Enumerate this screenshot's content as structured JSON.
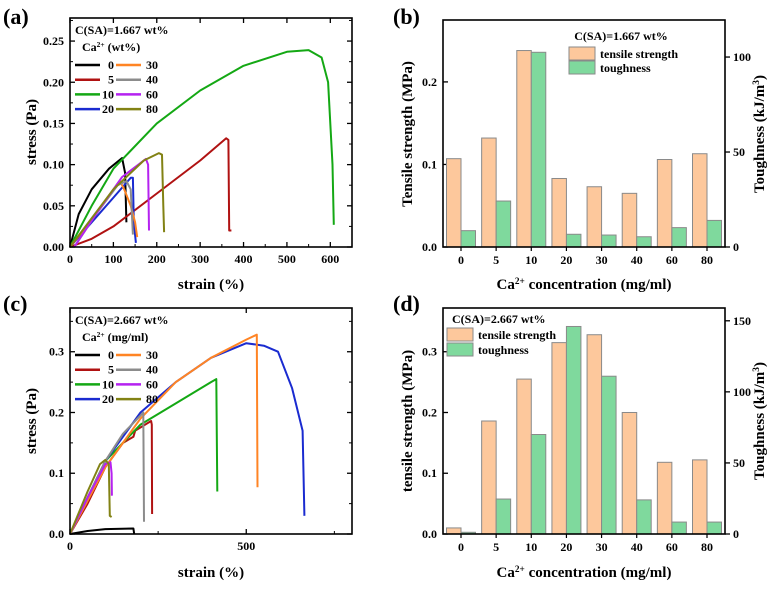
{
  "colors": {
    "black": "#000000",
    "red": "#b01212",
    "green": "#14a814",
    "blue": "#1a2bd0",
    "orange": "#ff8424",
    "gray": "#8c8c8c",
    "purple": "#b522f0",
    "olive": "#828214",
    "bar_tensile": "#fdc89c",
    "bar_toughness": "#7fd99d",
    "bar_edge": "#8a8a8a"
  },
  "chart_data": [
    {
      "panel_label": "(a)",
      "type": "line",
      "xlabel": [
        [
          "strain (%)",
          ""
        ]
      ],
      "ylabel": [
        [
          "stress (Pa)",
          ""
        ]
      ],
      "xlim": [
        0,
        650
      ],
      "ylim": [
        0,
        0.278
      ],
      "xticks": [
        0,
        100,
        200,
        300,
        400,
        500,
        600
      ],
      "xtick_labels": [
        "0",
        "100",
        "200",
        "300",
        "400",
        "500",
        "600"
      ],
      "yticks": [
        0,
        0.05,
        0.1,
        0.15,
        0.2,
        0.25
      ],
      "ytick_labels": [
        "0.00",
        "0.05",
        "0.10",
        "0.15",
        "0.20",
        "0.25"
      ],
      "legend": {
        "title": "C(SA)=1.667 wt%",
        "subtitle": [
          [
            "Ca",
            ""
          ],
          [
            "2+",
            "sup"
          ],
          [
            " (wt%)",
            ""
          ]
        ],
        "placement": "top-left"
      },
      "series": [
        {
          "name": "0",
          "color": "black",
          "x": [
            0,
            20,
            50,
            90,
            120,
            127,
            130
          ],
          "y": [
            0,
            0.04,
            0.07,
            0.095,
            0.108,
            0.09,
            0.03
          ]
        },
        {
          "name": "5",
          "color": "red",
          "x": [
            0,
            50,
            100,
            200,
            300,
            360,
            365,
            367,
            372
          ],
          "y": [
            0,
            0.01,
            0.025,
            0.065,
            0.105,
            0.132,
            0.13,
            0.02,
            0.02
          ]
        },
        {
          "name": "10",
          "color": "green",
          "x": [
            0,
            50,
            100,
            200,
            300,
            400,
            500,
            550,
            580,
            595,
            605,
            608
          ],
          "y": [
            0,
            0.05,
            0.095,
            0.15,
            0.19,
            0.22,
            0.237,
            0.239,
            0.23,
            0.2,
            0.1,
            0.027
          ]
        },
        {
          "name": "20",
          "color": "blue",
          "x": [
            0,
            50,
            100,
            140,
            145,
            147,
            152
          ],
          "y": [
            0,
            0.03,
            0.06,
            0.084,
            0.084,
            0.03,
            0.005
          ]
        },
        {
          "name": "30",
          "color": "orange",
          "x": [
            0,
            60,
            115,
            125,
            140,
            150,
            155
          ],
          "y": [
            0,
            0.04,
            0.08,
            0.07,
            0.05,
            0.03,
            0.012
          ]
        },
        {
          "name": "40",
          "color": "gray",
          "x": [
            10,
            60,
            110,
            130,
            140,
            145
          ],
          "y": [
            0,
            0.04,
            0.075,
            0.08,
            0.07,
            0.015
          ]
        },
        {
          "name": "60",
          "color": "purple",
          "x": [
            10,
            60,
            120,
            175,
            180,
            182
          ],
          "y": [
            0,
            0.04,
            0.085,
            0.107,
            0.1,
            0.02
          ]
        },
        {
          "name": "80",
          "color": "olive",
          "x": [
            0,
            50,
            100,
            170,
            205,
            212,
            215,
            217
          ],
          "y": [
            0,
            0.035,
            0.07,
            0.105,
            0.114,
            0.112,
            0.05,
            0.018
          ]
        }
      ]
    },
    {
      "panel_label": "(b)",
      "type": "bar",
      "xlabel": [
        [
          "Ca",
          ""
        ],
        [
          "2+",
          "sup"
        ],
        [
          " concentration (mg/ml)",
          ""
        ]
      ],
      "ylabel": [
        [
          "Tensile strength (MPa)",
          ""
        ]
      ],
      "ylabel_right": [
        [
          "Toughness (kJ/m",
          ""
        ],
        [
          "3",
          "sup"
        ],
        [
          ")",
          ""
        ]
      ],
      "categories": [
        "0",
        "5",
        "10",
        "20",
        "30",
        "40",
        "60",
        "80"
      ],
      "ylim": [
        0,
        0.275
      ],
      "ylim_right": [
        0,
        119.5
      ],
      "yticks": [
        0,
        0.1,
        0.2
      ],
      "ytick_labels": [
        "0.0",
        "0.1",
        "0.2"
      ],
      "yticks_right": [
        0,
        50,
        100
      ],
      "ytick_labels_right": [
        "0",
        "50",
        "100"
      ],
      "legend": {
        "title": "C(SA)=1.667 wt%",
        "placement": "top-center"
      },
      "series": [
        {
          "name": "tensile strength",
          "axis": "left",
          "values": [
            0.107,
            0.132,
            0.238,
            0.083,
            0.073,
            0.065,
            0.106,
            0.113
          ]
        },
        {
          "name": "toughness",
          "axis": "right",
          "values": [
            8.6,
            24.2,
            102.5,
            6.7,
            6.3,
            5.4,
            10.2,
            14.0
          ]
        }
      ]
    },
    {
      "panel_label": "(c)",
      "type": "line",
      "xlabel": [
        [
          "strain (%)",
          ""
        ]
      ],
      "ylabel": [
        [
          "stress (Pa)",
          ""
        ]
      ],
      "xlim": [
        0,
        800
      ],
      "ylim": [
        0,
        0.372
      ],
      "xticks": [
        0,
        500
      ],
      "xtick_labels": [
        "0",
        "500"
      ],
      "yticks": [
        0,
        0.1,
        0.2,
        0.3
      ],
      "ytick_labels": [
        "0.0",
        "0.1",
        "0.2",
        "0.3"
      ],
      "legend": {
        "title": "C(SA)=2.667 wt%",
        "subtitle": [
          [
            "Ca",
            ""
          ],
          [
            "2+",
            "sup"
          ],
          [
            " (mg/ml)",
            ""
          ]
        ],
        "placement": "top-left"
      },
      "series": [
        {
          "name": "0",
          "color": "black",
          "x": [
            0,
            50,
            100,
            180,
            182
          ],
          "y": [
            0,
            0.005,
            0.008,
            0.009,
            0
          ]
        },
        {
          "name": "5",
          "color": "red",
          "x": [
            0,
            50,
            100,
            150,
            180,
            185,
            230,
            232,
            233
          ],
          "y": [
            0,
            0.05,
            0.11,
            0.15,
            0.16,
            0.17,
            0.186,
            0.18,
            0.033
          ]
        },
        {
          "name": "10",
          "color": "green",
          "x": [
            0,
            100,
            200,
            300,
            400,
            415,
            418
          ],
          "y": [
            0,
            0.12,
            0.18,
            0.215,
            0.25,
            0.255,
            0.07
          ]
        },
        {
          "name": "20",
          "color": "blue",
          "x": [
            0,
            100,
            200,
            300,
            400,
            500,
            550,
            590,
            630,
            660,
            665
          ],
          "y": [
            0,
            0.12,
            0.2,
            0.25,
            0.29,
            0.314,
            0.31,
            0.3,
            0.24,
            0.17,
            0.03
          ]
        },
        {
          "name": "30",
          "color": "orange",
          "x": [
            0,
            100,
            200,
            300,
            400,
            500,
            530,
            532
          ],
          "y": [
            0,
            0.11,
            0.19,
            0.25,
            0.29,
            0.32,
            0.328,
            0.077
          ]
        },
        {
          "name": "40",
          "color": "gray",
          "x": [
            0,
            100,
            150,
            200,
            208,
            210
          ],
          "y": [
            0,
            0.12,
            0.165,
            0.195,
            0.2,
            0.02
          ]
        },
        {
          "name": "60",
          "color": "purple",
          "x": [
            0,
            50,
            100,
            115,
            118,
            119
          ],
          "y": [
            0,
            0.06,
            0.115,
            0.118,
            0.1,
            0.063
          ]
        },
        {
          "name": "80",
          "color": "olive",
          "x": [
            0,
            50,
            85,
            100,
            110,
            113,
            118
          ],
          "y": [
            0,
            0.07,
            0.115,
            0.122,
            0.115,
            0.03,
            0.028
          ]
        }
      ]
    },
    {
      "panel_label": "(d)",
      "type": "bar",
      "xlabel": [
        [
          "Ca",
          ""
        ],
        [
          "2+",
          "sup"
        ],
        [
          " concentration (mg/ml)",
          ""
        ]
      ],
      "ylabel": [
        [
          "tensile strength (MPa)",
          ""
        ]
      ],
      "ylabel_right": [
        [
          "Toughness (kJ/m",
          ""
        ],
        [
          "3",
          "sup"
        ],
        [
          ")",
          ""
        ]
      ],
      "categories": [
        "0",
        "5",
        "10",
        "20",
        "30",
        "40",
        "60",
        "80"
      ],
      "ylim": [
        0,
        0.372
      ],
      "ylim_right": [
        0,
        159
      ],
      "yticks": [
        0,
        0.1,
        0.2,
        0.3
      ],
      "ytick_labels": [
        "0.0",
        "0.1",
        "0.2",
        "0.3"
      ],
      "yticks_right": [
        0,
        50,
        100,
        150
      ],
      "ytick_labels_right": [
        "0",
        "50",
        "100",
        "150"
      ],
      "legend": {
        "title": "C(SA)=2.667 wt%",
        "placement": "top-left"
      },
      "series": [
        {
          "name": "tensile strength",
          "axis": "left",
          "values": [
            0.01,
            0.186,
            0.255,
            0.315,
            0.328,
            0.2,
            0.118,
            0.122
          ]
        },
        {
          "name": "toughness",
          "axis": "right",
          "values": [
            1.2,
            24.6,
            70,
            146,
            111,
            24,
            8.4,
            8.4
          ]
        }
      ]
    }
  ]
}
